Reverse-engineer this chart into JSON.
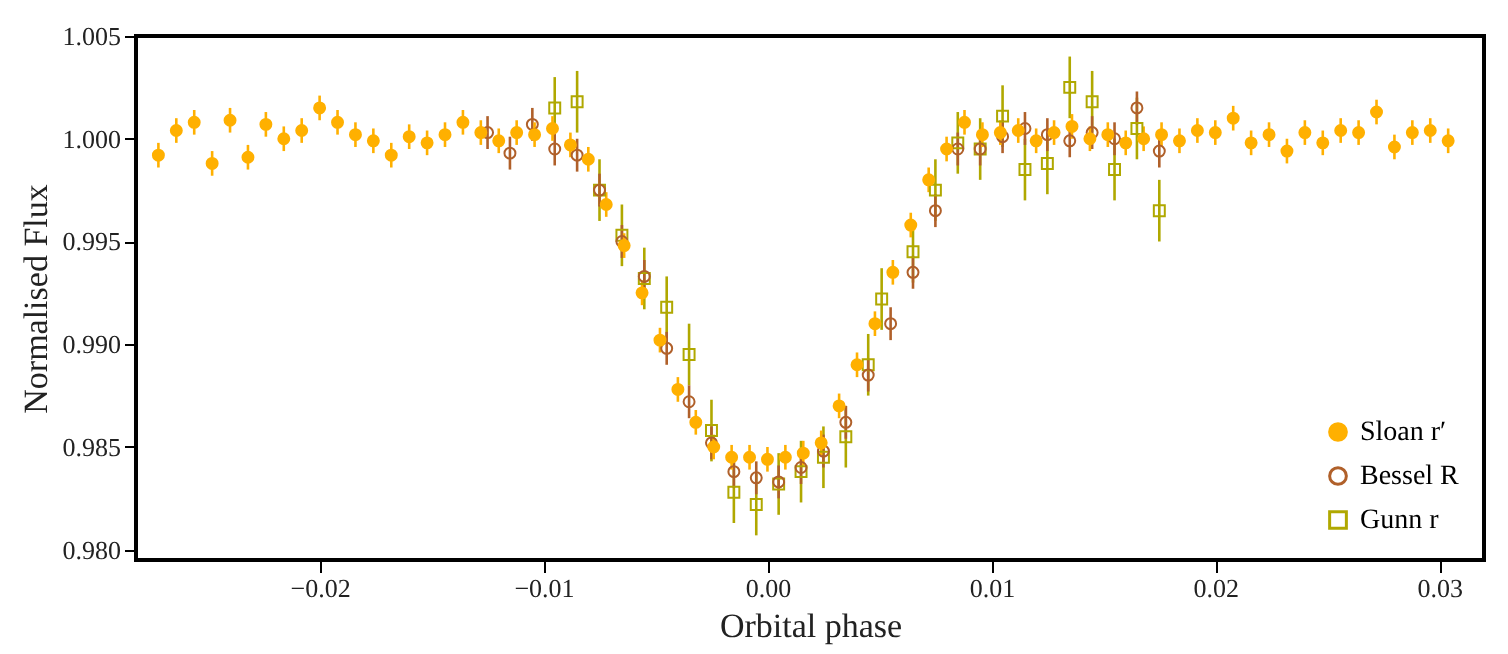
{
  "chart_data": {
    "type": "scatter",
    "xlabel": "Orbital phase",
    "ylabel": "Normalised Flux",
    "xlim": [
      -0.0282,
      0.032
    ],
    "ylim": [
      0.9795,
      1.005
    ],
    "xticks": [
      {
        "value": -0.02,
        "label": "−0.02"
      },
      {
        "value": -0.01,
        "label": "−0.01"
      },
      {
        "value": 0,
        "label": "0.00"
      },
      0.01,
      0.02,
      0.03
    ],
    "yticks": [
      {
        "value": 0.98,
        "label": "0.980"
      },
      0.985,
      {
        "value": 0.99,
        "label": "0.990"
      },
      0.995,
      {
        "value": 1,
        "label": "1.000"
      },
      1.005
    ],
    "grid": false,
    "legend": "bottom right",
    "series": [
      {
        "name": "Sloan r′",
        "color": "#ffb000",
        "marker": "circle",
        "x": [
          -0.0272,
          -0.0264,
          -0.0256,
          -0.0248,
          -0.024,
          -0.0232,
          -0.0224,
          -0.0216,
          -0.0208,
          -0.02,
          -0.0192,
          -0.0184,
          -0.0176,
          -0.0168,
          -0.016,
          -0.0152,
          -0.0144,
          -0.0136,
          -0.0128,
          -0.012,
          -0.0112,
          -0.0104,
          -0.0096,
          -0.0088,
          -0.008,
          -0.0072,
          -0.0064,
          -0.0056,
          -0.0048,
          -0.004,
          -0.0032,
          -0.0024,
          -0.0016,
          -0.0008,
          0,
          0.0008,
          0.0016,
          0.0024,
          0.0032,
          0.004,
          0.0048,
          0.0056,
          0.0064,
          0.0072,
          0.008,
          0.0088,
          0.0096,
          0.0104,
          0.0112,
          0.012,
          0.0128,
          0.0136,
          0.0144,
          0.0152,
          0.016,
          0.0168,
          0.0176,
          0.0184,
          0.0192,
          0.02,
          0.0208,
          0.0216,
          0.0224,
          0.0232,
          0.024,
          0.0248,
          0.0256,
          0.0264,
          0.0272,
          0.028,
          0.0288,
          0.0296,
          0.0304
        ],
        "values": [
          0.9992,
          1.0004,
          1.0008,
          0.9988,
          1.0009,
          0.9991,
          1.0007,
          1.0,
          1.0004,
          1.0015,
          1.0008,
          1.0002,
          0.9999,
          0.9992,
          1.0001,
          0.9998,
          1.0002,
          1.0008,
          1.0003,
          0.9999,
          1.0003,
          1.0002,
          1.0005,
          0.9997,
          0.999,
          0.9968,
          0.9948,
          0.9925,
          0.9902,
          0.9878,
          0.9862,
          0.985,
          0.9845,
          0.9845,
          0.9844,
          0.9845,
          0.9847,
          0.9852,
          0.987,
          0.989,
          0.991,
          0.9935,
          0.9958,
          0.998,
          0.9995,
          1.0008,
          1.0002,
          1.0003,
          1.0004,
          0.9999,
          1.0003,
          1.0006,
          1.0,
          1.0002,
          0.9998,
          1.0,
          1.0002,
          0.9999,
          1.0004,
          1.0003,
          1.001,
          0.9998,
          1.0002,
          0.9994,
          1.0003,
          0.9998,
          1.0004,
          1.0003,
          1.0013,
          0.9996,
          1.0003,
          1.0004,
          0.9999
        ],
        "errors": [
          0.0006,
          0.0006,
          0.0006,
          0.0006,
          0.0006,
          0.0006,
          0.0006,
          0.0006,
          0.0006,
          0.0006,
          0.0006,
          0.0006,
          0.0006,
          0.0006,
          0.0006,
          0.0006,
          0.0006,
          0.0006,
          0.0006,
          0.0006,
          0.0006,
          0.0006,
          0.0006,
          0.0006,
          0.0006,
          0.0006,
          0.0006,
          0.0006,
          0.0006,
          0.0006,
          0.0006,
          0.0006,
          0.0006,
          0.0006,
          0.0006,
          0.0006,
          0.0006,
          0.0006,
          0.0006,
          0.0006,
          0.0006,
          0.0006,
          0.0006,
          0.0006,
          0.0006,
          0.0006,
          0.0006,
          0.0006,
          0.0006,
          0.0006,
          0.0006,
          0.0006,
          0.0006,
          0.0006,
          0.0006,
          0.0006,
          0.0006,
          0.0006,
          0.0006,
          0.0006,
          0.0006,
          0.0006,
          0.0006,
          0.0006,
          0.0006,
          0.0006,
          0.0006,
          0.0006,
          0.0006,
          0.0006,
          0.0006,
          0.0006,
          0.0006
        ]
      },
      {
        "name": "Bessel R",
        "color": "#b0602a",
        "marker": "circle",
        "x": [
          -0.0125,
          -0.0115,
          -0.0105,
          -0.0095,
          -0.0085,
          -0.0075,
          -0.0065,
          -0.0055,
          -0.0045,
          -0.0035,
          -0.0025,
          -0.0015,
          -0.0005,
          0.0005,
          0.0015,
          0.0025,
          0.0035,
          0.0045,
          0.0055,
          0.0065,
          0.0075,
          0.0085,
          0.0095,
          0.0105,
          0.0115,
          0.0125,
          0.0135,
          0.0145,
          0.0155,
          0.0165,
          0.0175
        ],
        "values": [
          1.0003,
          0.9993,
          1.0007,
          0.9995,
          0.9992,
          0.9975,
          0.995,
          0.9933,
          0.9898,
          0.9872,
          0.9852,
          0.9838,
          0.9835,
          0.9833,
          0.984,
          0.9848,
          0.9862,
          0.9885,
          0.991,
          0.9935,
          0.9965,
          0.9995,
          0.9995,
          1.0001,
          1.0005,
          1.0002,
          0.9999,
          1.0003,
          1.0,
          1.0015,
          0.9994
        ],
        "errors": [
          0.0008,
          0.0008,
          0.0008,
          0.0008,
          0.0008,
          0.0008,
          0.0008,
          0.0008,
          0.0008,
          0.0008,
          0.0008,
          0.0008,
          0.0008,
          0.0008,
          0.0008,
          0.0008,
          0.0008,
          0.0008,
          0.0008,
          0.0008,
          0.0008,
          0.0008,
          0.0008,
          0.0008,
          0.0008,
          0.0008,
          0.0008,
          0.0008,
          0.0008,
          0.0008,
          0.0008
        ]
      },
      {
        "name": "Gunn r",
        "color": "#b0a800",
        "marker": "square",
        "x": [
          -0.0095,
          -0.0085,
          -0.0075,
          -0.0065,
          -0.0055,
          -0.0045,
          -0.0035,
          -0.0025,
          -0.0015,
          -0.0005,
          0.0005,
          0.0015,
          0.0025,
          0.0035,
          0.0045,
          0.0051,
          0.0065,
          0.0075,
          0.0085,
          0.0095,
          0.0105,
          0.0115,
          0.0125,
          0.0135,
          0.0145,
          0.0155,
          0.0165,
          0.0175
        ],
        "values": [
          1.0015,
          1.0018,
          0.9975,
          0.9953,
          0.9932,
          0.9918,
          0.9895,
          0.9858,
          0.9828,
          0.9822,
          0.9832,
          0.9838,
          0.9845,
          0.9855,
          0.989,
          0.9922,
          0.9945,
          0.9975,
          0.9998,
          0.9995,
          1.0011,
          0.9985,
          0.9988,
          1.0025,
          1.0018,
          0.9985,
          1.0005,
          0.9965
        ],
        "errors": [
          0.0015,
          0.0015,
          0.0015,
          0.0015,
          0.0015,
          0.0015,
          0.0015,
          0.0015,
          0.0015,
          0.0015,
          0.0015,
          0.0015,
          0.0015,
          0.0015,
          0.0015,
          0.0015,
          0.0015,
          0.0015,
          0.0015,
          0.0015,
          0.0015,
          0.0015,
          0.0015,
          0.0015,
          0.0015,
          0.0015,
          0.0015,
          0.0015
        ]
      }
    ]
  }
}
